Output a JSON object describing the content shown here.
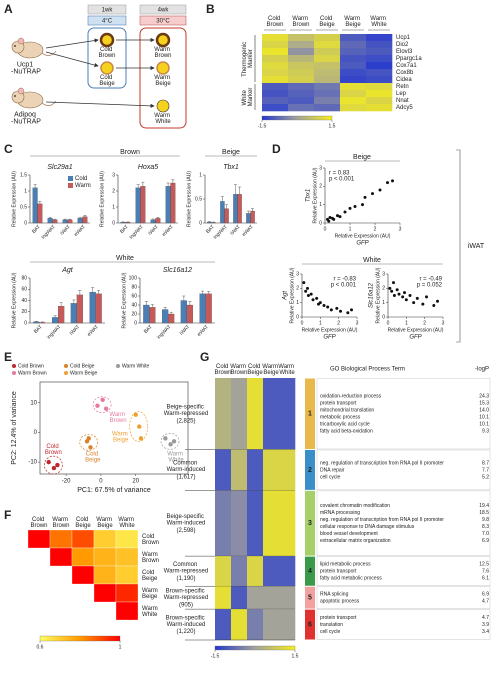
{
  "panel_labels": [
    "A",
    "B",
    "C",
    "D",
    "E",
    "F",
    "G"
  ],
  "A": {
    "timepoints": [
      "1wk",
      "4wk"
    ],
    "temperatures": [
      "4°C",
      "30°C"
    ],
    "mice": [
      "Ucp1 -NuTRAP",
      "Adipoq -NuTRAP"
    ],
    "cold_groups": [
      "Cold Brown",
      "Cold Beige"
    ],
    "warm_groups": [
      "Warm Brown",
      "Warm Beige",
      "Warm White"
    ]
  },
  "B": {
    "type": "heatmap",
    "columns": [
      "Cold Brown",
      "Warm Brown",
      "Cold Beige",
      "Warm Beige",
      "Warm White"
    ],
    "row_groups": [
      {
        "name": "Thermogenic Marker",
        "genes": [
          "Ucp1",
          "Dio2",
          "Elovl3",
          "Ppargc1a",
          "Cox7a1",
          "Cox8b",
          "Cidea"
        ]
      },
      {
        "name": "White Marker",
        "genes": [
          "Retn",
          "Lep",
          "Nnat",
          "Adcy5"
        ]
      }
    ],
    "values": [
      [
        1.2,
        0.6,
        0.9,
        -1.0,
        -1.3
      ],
      [
        1.0,
        0.2,
        1.1,
        -0.8,
        -1.1
      ],
      [
        1.3,
        -0.2,
        0.8,
        -0.9,
        -1.0
      ],
      [
        0.9,
        0.4,
        1.0,
        -1.1,
        -1.2
      ],
      [
        1.1,
        0.7,
        0.6,
        -1.0,
        -1.4
      ],
      [
        1.0,
        0.8,
        0.5,
        -1.2,
        -1.1
      ],
      [
        1.2,
        0.9,
        0.4,
        -1.3,
        -1.2
      ],
      [
        -1.0,
        -0.8,
        -0.6,
        1.2,
        1.1
      ],
      [
        -1.1,
        -0.9,
        -0.7,
        1.0,
        1.3
      ],
      [
        -0.9,
        -1.0,
        -0.5,
        1.3,
        1.0
      ],
      [
        -1.2,
        -0.7,
        -0.8,
        1.1,
        1.2
      ]
    ],
    "colorbar": {
      "lim": [
        -1.5,
        1.5
      ],
      "ticks": [
        -1.5,
        1.5
      ],
      "colors": [
        "#2437d0",
        "#a3a39a",
        "#f5ee1c"
      ]
    }
  },
  "C": {
    "sections": [
      "Brown",
      "Beige",
      "White"
    ],
    "y_label": "Relative Expression (AU)",
    "charts": [
      {
        "type": "bar",
        "title": "Slc29a1",
        "categories": [
          "BAT",
          "ingWAT",
          "iWAT",
          "eWAT"
        ],
        "ylim": [
          0,
          1.5
        ],
        "yticks": [
          0,
          0.5,
          1,
          1.5
        ],
        "series": [
          {
            "name": "Cold",
            "color": "#4a7fb5",
            "values": [
              1.1,
              0.15,
              0.1,
              0.15
            ],
            "errors": [
              0.1,
              0.03,
              0.02,
              0.03
            ]
          },
          {
            "name": "Warm",
            "color": "#c45a5a",
            "values": [
              0.6,
              0.1,
              0.1,
              0.2
            ],
            "errors": [
              0.08,
              0.02,
              0.02,
              0.04
            ]
          }
        ]
      },
      {
        "type": "bar",
        "title": "Hoxa5",
        "categories": [
          "BAT",
          "ingWAT",
          "iWAT",
          "eWAT"
        ],
        "ylim": [
          0,
          3
        ],
        "yticks": [
          0,
          1,
          2,
          3
        ],
        "series": [
          {
            "name": "Cold",
            "color": "#4a7fb5",
            "values": [
              0.05,
              2.2,
              0.2,
              2.3
            ],
            "errors": [
              0.02,
              0.2,
              0.05,
              0.2
            ]
          },
          {
            "name": "Warm",
            "color": "#c45a5a",
            "values": [
              0.05,
              2.3,
              0.3,
              2.5
            ],
            "errors": [
              0.02,
              0.25,
              0.05,
              0.2
            ]
          }
        ]
      },
      {
        "type": "bar",
        "title": "Tbx1",
        "categories": [
          "BAT",
          "ingWAT",
          "iWAT",
          "eWAT"
        ],
        "ylim": [
          0,
          1
        ],
        "yticks": [
          0,
          0.5,
          1
        ],
        "series": [
          {
            "name": "Cold",
            "color": "#4a7fb5",
            "values": [
              0.02,
              0.45,
              0.6,
              0.2
            ],
            "errors": [
              0.01,
              0.1,
              0.2,
              0.05
            ]
          },
          {
            "name": "Warm",
            "color": "#c45a5a",
            "values": [
              0.01,
              0.3,
              0.6,
              0.25
            ],
            "errors": [
              0.01,
              0.08,
              0.15,
              0.05
            ]
          }
        ]
      },
      {
        "type": "bar",
        "title": "Agt",
        "categories": [
          "BAT",
          "ingWAT",
          "iWAT",
          "eWAT"
        ],
        "ylim": [
          0,
          80
        ],
        "yticks": [
          0,
          20,
          40,
          60,
          80
        ],
        "series": [
          {
            "name": "Cold",
            "color": "#4a7fb5",
            "values": [
              2,
              10,
              35,
              55
            ],
            "errors": [
              1,
              3,
              6,
              8
            ]
          },
          {
            "name": "Warm",
            "color": "#c45a5a",
            "values": [
              1,
              30,
              50,
              52
            ],
            "errors": [
              1,
              6,
              8,
              6
            ]
          }
        ]
      },
      {
        "type": "bar",
        "title": "Slc16a12",
        "categories": [
          "BAT",
          "ingWAT",
          "iWAT",
          "eWAT"
        ],
        "ylim": [
          0,
          100
        ],
        "yticks": [
          0,
          20,
          40,
          60,
          80,
          100
        ],
        "series": [
          {
            "name": "Cold",
            "color": "#4a7fb5",
            "values": [
              40,
              30,
              50,
              65
            ],
            "errors": [
              8,
              5,
              10,
              6
            ]
          },
          {
            "name": "Warm",
            "color": "#c45a5a",
            "values": [
              35,
              20,
              40,
              65
            ],
            "errors": [
              6,
              4,
              8,
              5
            ]
          }
        ]
      }
    ]
  },
  "D": {
    "sections": [
      "Beige",
      "White"
    ],
    "tissue": "iWAT",
    "axis_label": "Relative Expression (AU)",
    "x_gene": "GFP",
    "charts": [
      {
        "type": "scatter",
        "y_gene": "Tbx1",
        "stats": [
          "r = 0.83",
          "p < 0.001"
        ],
        "xlim": [
          0,
          3
        ],
        "xticks": [
          0,
          1,
          2,
          3
        ],
        "ylim": [
          0,
          3
        ],
        "yticks": [
          0,
          1,
          2,
          3
        ],
        "x": [
          0.1,
          0.15,
          0.2,
          0.3,
          0.35,
          0.5,
          0.6,
          0.8,
          1.0,
          1.2,
          1.5,
          1.6,
          1.9,
          2.2,
          2.5,
          2.7
        ],
        "y": [
          0.2,
          0.1,
          0.3,
          0.25,
          0.2,
          0.4,
          0.35,
          0.6,
          0.8,
          0.9,
          1.0,
          1.4,
          1.6,
          1.8,
          2.2,
          2.3
        ]
      },
      {
        "type": "scatter",
        "y_gene": "Agt",
        "stats": [
          "r = -0.83",
          "p < 0.001"
        ],
        "xlim": [
          0,
          3
        ],
        "xticks": [
          0,
          1,
          2,
          3
        ],
        "ylim": [
          0,
          3
        ],
        "yticks": [
          0,
          1,
          2,
          3
        ],
        "x": [
          0.1,
          0.2,
          0.3,
          0.35,
          0.5,
          0.6,
          0.8,
          0.9,
          1.0,
          1.2,
          1.4,
          1.6,
          1.9,
          2.1,
          2.5,
          2.7
        ],
        "y": [
          2.4,
          1.8,
          2.0,
          1.5,
          1.6,
          1.2,
          1.3,
          0.9,
          1.0,
          0.8,
          0.7,
          0.5,
          0.6,
          0.4,
          0.3,
          0.5
        ]
      },
      {
        "type": "scatter",
        "y_gene": "Slc16a12",
        "stats": [
          "r = -0.49",
          "p = 0.052"
        ],
        "xlim": [
          0,
          3
        ],
        "xticks": [
          0,
          1,
          2,
          3
        ],
        "ylim": [
          0,
          3
        ],
        "yticks": [
          0,
          1,
          2,
          3
        ],
        "x": [
          0.1,
          0.2,
          0.3,
          0.35,
          0.5,
          0.6,
          0.8,
          0.9,
          1.0,
          1.2,
          1.4,
          1.6,
          1.9,
          2.1,
          2.5,
          2.7
        ],
        "y": [
          2.0,
          1.8,
          2.4,
          1.5,
          1.9,
          1.6,
          1.4,
          1.7,
          1.2,
          1.5,
          1.0,
          1.3,
          0.9,
          1.4,
          0.8,
          1.1
        ]
      }
    ]
  },
  "E": {
    "type": "scatter",
    "x_label": "PC1: 67.5% of variance",
    "y_label": "PC2: 12.4% of variance",
    "xlim": [
      -35,
      50
    ],
    "xticks": [
      -20,
      0,
      20
    ],
    "ylim": [
      -14,
      17
    ],
    "yticks": [
      -10,
      0,
      10
    ],
    "series": [
      {
        "name": "Cold Brown",
        "color": "#c0272d",
        "x": [
          -30,
          -27,
          -25
        ],
        "y": [
          -10,
          -12,
          -11
        ]
      },
      {
        "name": "Cold Beige",
        "color": "#d9822b",
        "x": [
          -8,
          -6,
          -7
        ],
        "y": [
          -3,
          -5,
          -2
        ]
      },
      {
        "name": "Warm White",
        "color": "#9a9a9a",
        "x": [
          37,
          40,
          42
        ],
        "y": [
          -2,
          -4,
          -3
        ]
      },
      {
        "name": "Warm Brown",
        "color": "#e87aa0",
        "x": [
          -2,
          1,
          3
        ],
        "y": [
          9,
          11,
          8
        ]
      },
      {
        "name": "Warm Beige",
        "color": "#f0a030",
        "x": [
          20,
          22,
          23
        ],
        "y": [
          6,
          2,
          -2
        ]
      }
    ]
  },
  "F": {
    "type": "heatmap",
    "labels": [
      "Cold Brown",
      "Warm Brown",
      "Cold Beige",
      "Warm Beige",
      "Warm White"
    ],
    "values": [
      [
        1,
        0.85,
        0.9,
        0.7,
        0.65
      ],
      [
        1,
        0.8,
        0.75,
        0.72
      ],
      [
        1,
        0.75,
        0.7
      ],
      [
        1,
        0.95
      ],
      [
        1
      ]
    ],
    "colorbar": {
      "lim": [
        0.6,
        1
      ],
      "ticks": [
        0.6,
        1
      ],
      "colors": [
        "#ffff60",
        "#ff9a00",
        "#ff0000"
      ]
    }
  },
  "G": {
    "type": "heatmap",
    "columns": [
      "Cold Brown",
      "Warm Brown",
      "Cold Beige",
      "Warm Beige",
      "Warm White"
    ],
    "go_header": "GO Biological Process Term",
    "logp_header": "-logP",
    "colorbar": {
      "lim": [
        -1.5,
        1.5
      ],
      "ticks": [
        -1.5,
        1.5
      ],
      "colors": [
        "#2437d0",
        "#a3a39a",
        "#f5ee1c"
      ]
    },
    "clusters": [
      {
        "id": "1",
        "name": "Beige-specific Warm-repressed",
        "count": 2825,
        "count_label": "(2,825)",
        "color": "#e8b94a",
        "values": [
          0.3,
          0.0,
          1.2,
          -1.0,
          -1.0
        ],
        "terms": [
          {
            "term": "oxidation-reduction process",
            "logp": "24.3"
          },
          {
            "term": "protein transport",
            "logp": "15.3"
          },
          {
            "term": "mitochondrial translation",
            "logp": "14.0"
          },
          {
            "term": "metabolic process",
            "logp": "10.1"
          },
          {
            "term": "tricarboxylic acid cycle",
            "logp": "10.1"
          },
          {
            "term": "fatty acid beta-oxidation",
            "logp": "9.3"
          }
        ]
      },
      {
        "id": "2",
        "name": "Common Warm-induced",
        "count": 1617,
        "count_label": "(1,617)",
        "color": "#3a8fc9",
        "values": [
          -1.0,
          0.5,
          -1.0,
          1.0,
          1.0
        ],
        "terms": [
          {
            "term": "neg. regulation of transcription from RNA pol II promoter",
            "logp": "8.7"
          },
          {
            "term": "DNA repair",
            "logp": "7.7"
          },
          {
            "term": "cell cycle",
            "logp": "5.2"
          }
        ]
      },
      {
        "id": "3",
        "name": "Beige-specific Warm-induced",
        "count": 2598,
        "count_label": "(2,598)",
        "color": "#a6d06a",
        "values": [
          -0.5,
          -0.3,
          -1.0,
          1.2,
          1.2
        ],
        "terms": [
          {
            "term": "covalent chromatin modification",
            "logp": "19.4"
          },
          {
            "term": "mRNA processing",
            "logp": "18.5"
          },
          {
            "term": "neg. regulation of transcription from RNA pol II promoter",
            "logp": "9.8"
          },
          {
            "term": "cellular response to DNA damage stimulus",
            "logp": "8.3"
          },
          {
            "term": "blood vessel development",
            "logp": "7.0"
          },
          {
            "term": "extracellular matrix organization",
            "logp": "6.9"
          }
        ]
      },
      {
        "id": "4",
        "name": "Common Warm-repressed",
        "count": 1190,
        "count_label": "(1,190)",
        "color": "#3a9a4a",
        "values": [
          1.0,
          -0.5,
          1.0,
          -1.0,
          -1.0
        ],
        "terms": [
          {
            "term": "lipid metabolic process",
            "logp": "12.5"
          },
          {
            "term": "protein transport",
            "logp": "7.6"
          },
          {
            "term": "fatty acid metabolic process",
            "logp": "6.1"
          }
        ]
      },
      {
        "id": "5",
        "name": "Brown-specific Warm-repressed",
        "count": 905,
        "count_label": "(905)",
        "color": "#f2a0a0",
        "values": [
          1.2,
          -1.0,
          0.0,
          0.0,
          0.0
        ],
        "terms": [
          {
            "term": "RNA splicing",
            "logp": "6.9"
          },
          {
            "term": "apoptotic process",
            "logp": "4.7"
          }
        ]
      },
      {
        "id": "6",
        "name": "Brown-specific Warm-induced",
        "count": 1220,
        "count_label": "(1,220)",
        "color": "#e03030",
        "values": [
          -1.0,
          1.2,
          -0.5,
          0.0,
          0.0
        ],
        "terms": [
          {
            "term": "protein transport",
            "logp": "4.7"
          },
          {
            "term": "translation",
            "logp": "3.9"
          },
          {
            "term": "cell cycle",
            "logp": "3.4"
          }
        ]
      }
    ]
  }
}
